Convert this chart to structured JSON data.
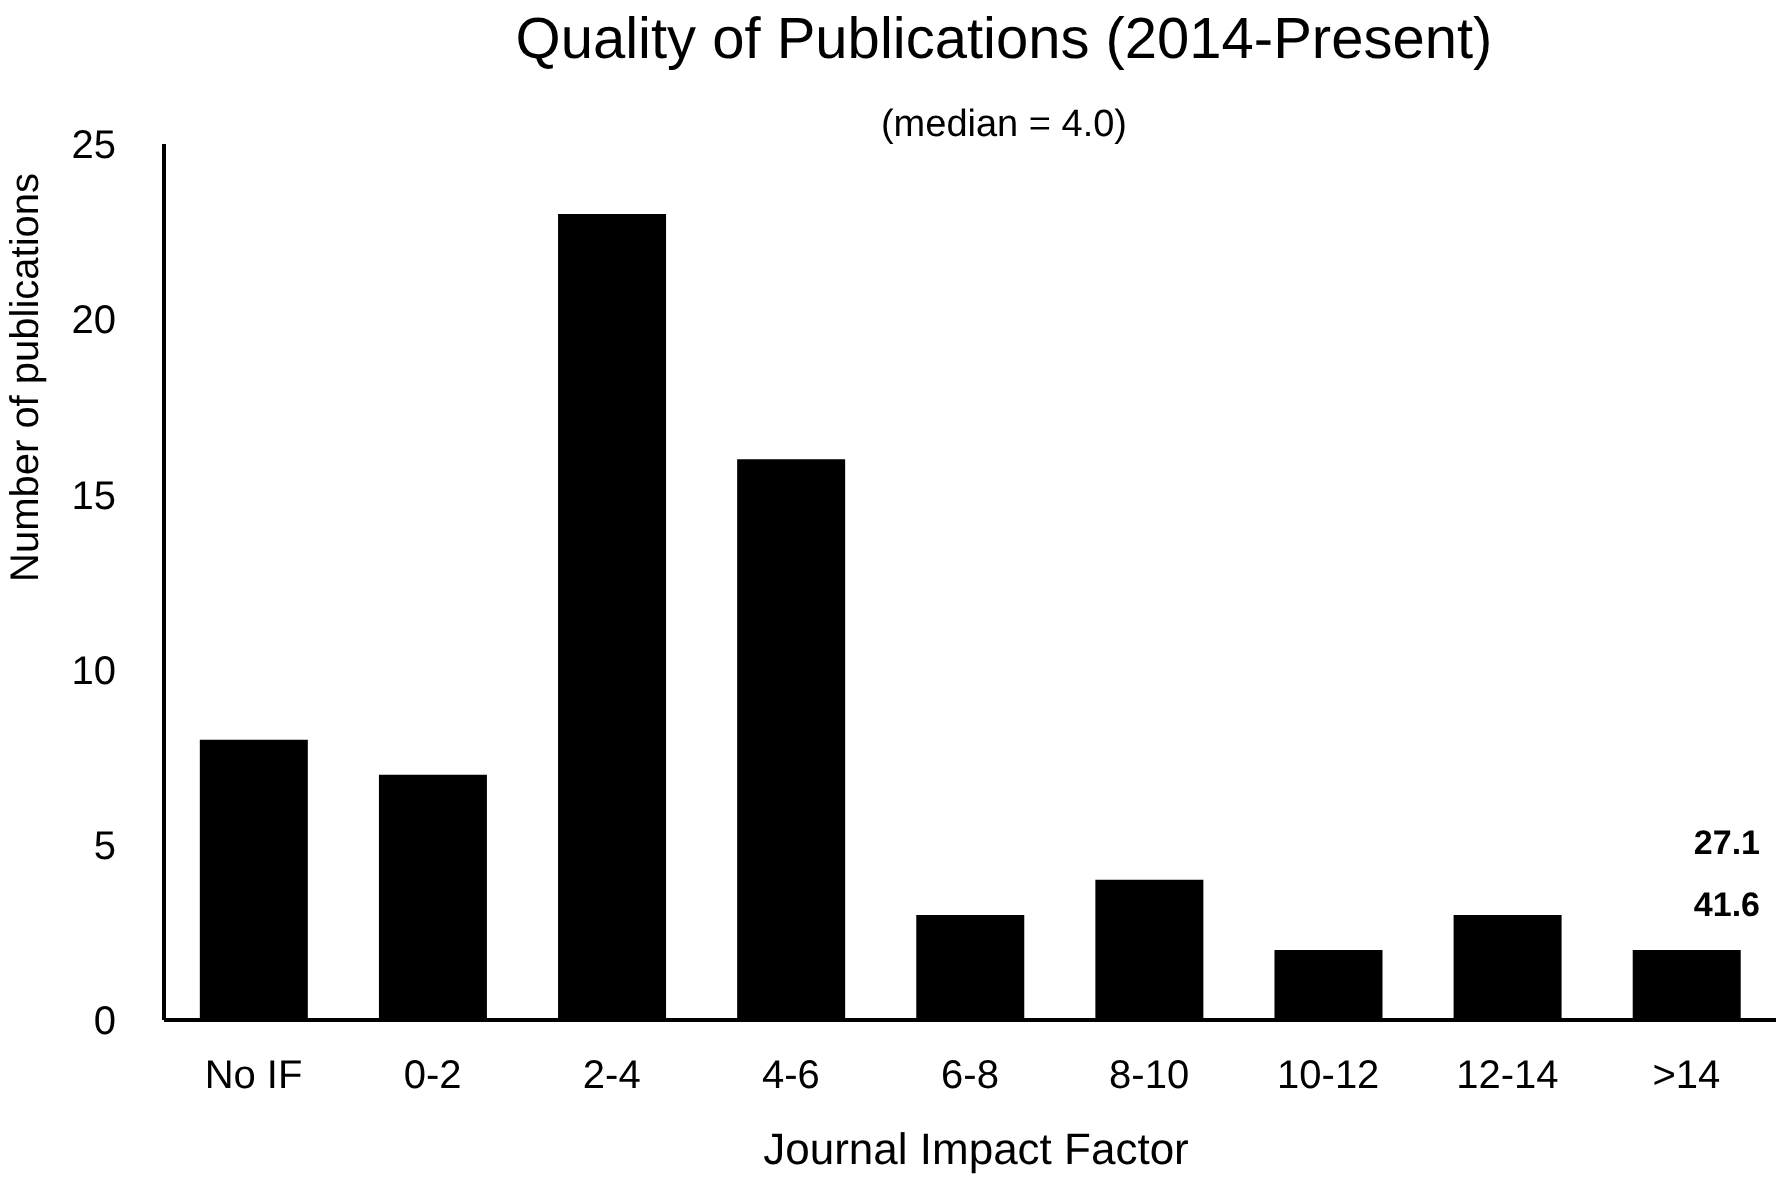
{
  "chart_data": {
    "type": "bar",
    "title": "Quality of Publications (2014-Present)",
    "subtitle": "(median = 4.0)",
    "xlabel": "Journal Impact Factor",
    "ylabel": "Number of publications",
    "categories": [
      "No IF",
      "0-2",
      "2-4",
      "4-6",
      "6-8",
      "8-10",
      "10-12",
      "12-14",
      ">14"
    ],
    "values": [
      8,
      7,
      23,
      16,
      3,
      4,
      2,
      3,
      2
    ],
    "color": "#000000",
    "ylim": [
      0,
      25
    ],
    "yticks": [
      0,
      5,
      10,
      15,
      20,
      25
    ],
    "grid": false,
    "legend": false,
    "annotations": [
      "27.1",
      "41.6"
    ]
  }
}
